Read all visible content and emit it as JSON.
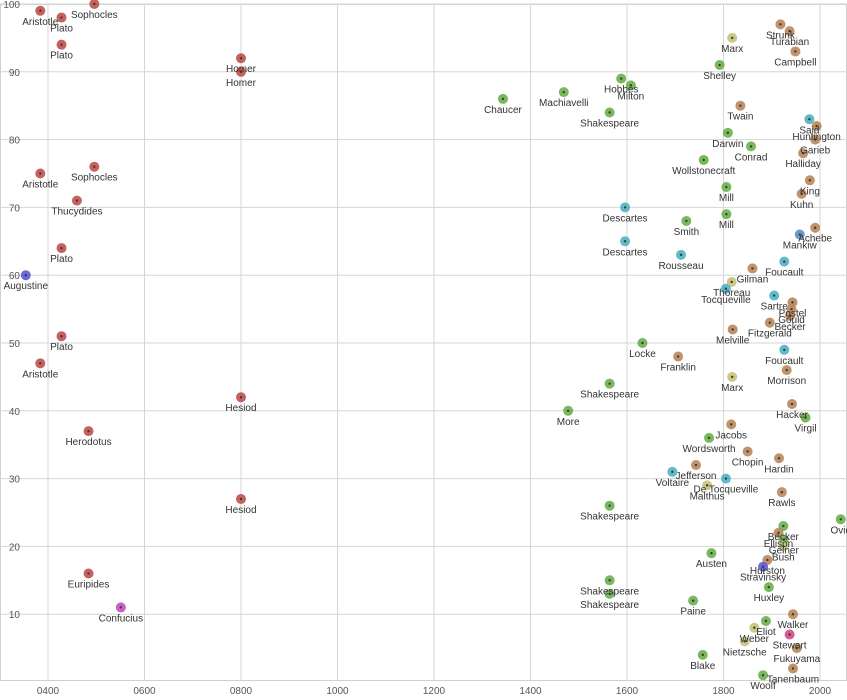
{
  "colors": {
    "ancient": "#c0504d",
    "modern_ochre": "#b9875a",
    "green": "#6ab04c",
    "olive": "#c6c27a",
    "teal": "#4fb3c4",
    "steel": "#5b8fc9",
    "indigo": "#5a5ad6",
    "magenta": "#c050c0",
    "pink": "#d04a8a"
  },
  "chart_data": {
    "type": "scatter",
    "title": "",
    "xlabel": "",
    "ylabel": "",
    "xlim": [
      360,
      2050
    ],
    "ylim": [
      0,
      100
    ],
    "grid": true,
    "legend": "none",
    "x_ticks": [
      {
        "value": 400,
        "label": "0400"
      },
      {
        "value": 600,
        "label": "0600"
      },
      {
        "value": 800,
        "label": "0800"
      },
      {
        "value": 1000,
        "label": "1000"
      },
      {
        "value": 1200,
        "label": "1200"
      },
      {
        "value": 1400,
        "label": "1400"
      },
      {
        "value": 1600,
        "label": "1600"
      },
      {
        "value": 1800,
        "label": "1800"
      },
      {
        "value": 2000,
        "label": "2000"
      }
    ],
    "y_ticks": [
      {
        "value": 10,
        "label": "10"
      },
      {
        "value": 20,
        "label": "20"
      },
      {
        "value": 30,
        "label": "30"
      },
      {
        "value": 40,
        "label": "40"
      },
      {
        "value": 50,
        "label": "50"
      },
      {
        "value": 60,
        "label": "60"
      },
      {
        "value": 70,
        "label": "70"
      },
      {
        "value": 80,
        "label": "80"
      },
      {
        "value": 90,
        "label": "90"
      },
      {
        "value": 100,
        "label": "100"
      }
    ],
    "points": [
      {
        "label": "Sophocles",
        "x": 496,
        "y": 100,
        "group": "ancient"
      },
      {
        "label": "Aristotle",
        "x": 384,
        "y": 99,
        "group": "ancient"
      },
      {
        "label": "Plato",
        "x": 428,
        "y": 98,
        "group": "ancient"
      },
      {
        "label": "Plato",
        "x": 428,
        "y": 94,
        "group": "ancient"
      },
      {
        "label": "Homer",
        "x": 800,
        "y": 92,
        "group": "ancient"
      },
      {
        "label": "Homer",
        "x": 800,
        "y": 90,
        "group": "ancient"
      },
      {
        "label": "Aristotle",
        "x": 384,
        "y": 75,
        "group": "ancient"
      },
      {
        "label": "Sophocles",
        "x": 496,
        "y": 76,
        "group": "ancient"
      },
      {
        "label": "Thucydides",
        "x": 460,
        "y": 71,
        "group": "ancient"
      },
      {
        "label": "Plato",
        "x": 428,
        "y": 64,
        "group": "ancient"
      },
      {
        "label": "Augustine",
        "x": 354,
        "y": 60,
        "group": "indigo"
      },
      {
        "label": "Plato",
        "x": 428,
        "y": 51,
        "group": "ancient"
      },
      {
        "label": "Aristotle",
        "x": 384,
        "y": 47,
        "group": "ancient"
      },
      {
        "label": "Hesiod",
        "x": 800,
        "y": 42,
        "group": "ancient"
      },
      {
        "label": "Herodotus",
        "x": 484,
        "y": 37,
        "group": "ancient"
      },
      {
        "label": "Hesiod",
        "x": 800,
        "y": 27,
        "group": "ancient"
      },
      {
        "label": "Euripides",
        "x": 484,
        "y": 16,
        "group": "ancient"
      },
      {
        "label": "Confucius",
        "x": 551,
        "y": 11,
        "group": "magenta"
      },
      {
        "label": "Chaucer",
        "x": 1343,
        "y": 86,
        "group": "green"
      },
      {
        "label": "Machiavelli",
        "x": 1469,
        "y": 87,
        "group": "green"
      },
      {
        "label": "Hobbes",
        "x": 1588,
        "y": 89,
        "group": "green"
      },
      {
        "label": "Milton",
        "x": 1608,
        "y": 88,
        "group": "green"
      },
      {
        "label": "Shakespeare",
        "x": 1564,
        "y": 84,
        "group": "green"
      },
      {
        "label": "Descartes",
        "x": 1596,
        "y": 70,
        "group": "teal"
      },
      {
        "label": "Descartes",
        "x": 1596,
        "y": 65,
        "group": "teal"
      },
      {
        "label": "Smith",
        "x": 1723,
        "y": 68,
        "group": "green"
      },
      {
        "label": "Rousseau",
        "x": 1712,
        "y": 63,
        "group": "teal"
      },
      {
        "label": "Locke",
        "x": 1632,
        "y": 50,
        "group": "green"
      },
      {
        "label": "Franklin",
        "x": 1706,
        "y": 48,
        "group": "modern_ochre"
      },
      {
        "label": "Shakespeare",
        "x": 1564,
        "y": 44,
        "group": "green"
      },
      {
        "label": "More",
        "x": 1478,
        "y": 40,
        "group": "green"
      },
      {
        "label": "Shakespeare",
        "x": 1564,
        "y": 26,
        "group": "green"
      },
      {
        "label": "Shakespeare",
        "x": 1564,
        "y": 15,
        "group": "green"
      },
      {
        "label": "Shakespeare",
        "x": 1564,
        "y": 13,
        "group": "green"
      },
      {
        "label": "Paine",
        "x": 1737,
        "y": 12,
        "group": "green"
      },
      {
        "label": "Blake",
        "x": 1757,
        "y": 4,
        "group": "green"
      },
      {
        "label": "Strunk",
        "x": 1918,
        "y": 97,
        "group": "modern_ochre"
      },
      {
        "label": "Turabian",
        "x": 1937,
        "y": 96,
        "group": "modern_ochre"
      },
      {
        "label": "Marx",
        "x": 1818,
        "y": 95,
        "group": "olive"
      },
      {
        "label": "Campbell",
        "x": 1949,
        "y": 93,
        "group": "modern_ochre"
      },
      {
        "label": "Shelley",
        "x": 1792,
        "y": 91,
        "group": "green"
      },
      {
        "label": "Twain",
        "x": 1835,
        "y": 85,
        "group": "modern_ochre"
      },
      {
        "label": "Said",
        "x": 1978,
        "y": 83,
        "group": "teal"
      },
      {
        "label": "Huntington",
        "x": 1993,
        "y": 82,
        "group": "modern_ochre"
      },
      {
        "label": "Darwin",
        "x": 1809,
        "y": 81,
        "group": "green"
      },
      {
        "label": "Garieb",
        "x": 1990,
        "y": 80,
        "group": "modern_ochre"
      },
      {
        "label": "Conrad",
        "x": 1857,
        "y": 79,
        "group": "green"
      },
      {
        "label": "Halliday",
        "x": 1965,
        "y": 78,
        "group": "modern_ochre"
      },
      {
        "label": "Wollstonecraft",
        "x": 1759,
        "y": 77,
        "group": "green"
      },
      {
        "label": "King",
        "x": 1979,
        "y": 74,
        "group": "modern_ochre"
      },
      {
        "label": "Mill",
        "x": 1806,
        "y": 73,
        "group": "green"
      },
      {
        "label": "Kuhn",
        "x": 1962,
        "y": 72,
        "group": "modern_ochre"
      },
      {
        "label": "Mill",
        "x": 1806,
        "y": 69,
        "group": "green"
      },
      {
        "label": "Achebe",
        "x": 1990,
        "y": 67,
        "group": "modern_ochre"
      },
      {
        "label": "Mankiw",
        "x": 1958,
        "y": 66,
        "group": "steel"
      },
      {
        "label": "Foucault",
        "x": 1926,
        "y": 62,
        "group": "teal"
      },
      {
        "label": "Gilman",
        "x": 1860,
        "y": 61,
        "group": "modern_ochre"
      },
      {
        "label": "Thoreau",
        "x": 1817,
        "y": 59,
        "group": "olive"
      },
      {
        "label": "Tocqueville",
        "x": 1805,
        "y": 58,
        "group": "teal"
      },
      {
        "label": "Sartre",
        "x": 1905,
        "y": 57,
        "group": "teal"
      },
      {
        "label": "Postel",
        "x": 1943,
        "y": 56,
        "group": "modern_ochre"
      },
      {
        "label": "Gould",
        "x": 1941,
        "y": 55,
        "group": "modern_ochre"
      },
      {
        "label": "Becker",
        "x": 1938,
        "y": 54,
        "group": "modern_ochre"
      },
      {
        "label": "Fitzgerald",
        "x": 1896,
        "y": 53,
        "group": "modern_ochre"
      },
      {
        "label": "Melville",
        "x": 1819,
        "y": 52,
        "group": "modern_ochre"
      },
      {
        "label": "Foucault",
        "x": 1926,
        "y": 49,
        "group": "teal"
      },
      {
        "label": "Morrison",
        "x": 1931,
        "y": 46,
        "group": "modern_ochre"
      },
      {
        "label": "Marx",
        "x": 1818,
        "y": 45,
        "group": "olive"
      },
      {
        "label": "Hacker",
        "x": 1942,
        "y": 41,
        "group": "modern_ochre"
      },
      {
        "label": "Virgil",
        "x": 1970,
        "y": 39,
        "group": "green"
      },
      {
        "label": "Jacobs",
        "x": 1816,
        "y": 38,
        "group": "modern_ochre"
      },
      {
        "label": "Wordsworth",
        "x": 1770,
        "y": 36,
        "group": "green"
      },
      {
        "label": "Chopin",
        "x": 1850,
        "y": 34,
        "group": "modern_ochre"
      },
      {
        "label": "Hardin",
        "x": 1915,
        "y": 33,
        "group": "modern_ochre"
      },
      {
        "label": "Jefferson",
        "x": 1743,
        "y": 32,
        "group": "modern_ochre"
      },
      {
        "label": "Voltaire",
        "x": 1694,
        "y": 31,
        "group": "teal"
      },
      {
        "label": "De Tocqueville",
        "x": 1805,
        "y": 30,
        "group": "teal"
      },
      {
        "label": "Malthus",
        "x": 1766,
        "y": 29,
        "group": "olive"
      },
      {
        "label": "Rawls",
        "x": 1921,
        "y": 28,
        "group": "modern_ochre"
      },
      {
        "label": "Ovid",
        "x": 2043,
        "y": 24,
        "group": "green"
      },
      {
        "label": "Becker",
        "x": 1924,
        "y": 23,
        "group": "green"
      },
      {
        "label": "Ellison",
        "x": 1914,
        "y": 22,
        "group": "modern_ochre"
      },
      {
        "label": "Gelner",
        "x": 1925,
        "y": 21,
        "group": "green"
      },
      {
        "label": "Bush",
        "x": 1924,
        "y": 20,
        "group": "olive"
      },
      {
        "label": "Austen",
        "x": 1775,
        "y": 19,
        "group": "green"
      },
      {
        "label": "Hurston",
        "x": 1891,
        "y": 18,
        "group": "modern_ochre"
      },
      {
        "label": "Stravinsky",
        "x": 1882,
        "y": 17,
        "group": "indigo"
      },
      {
        "label": "Huxley",
        "x": 1894,
        "y": 14,
        "group": "green"
      },
      {
        "label": "Walker",
        "x": 1944,
        "y": 10,
        "group": "modern_ochre"
      },
      {
        "label": "Eliot",
        "x": 1888,
        "y": 9,
        "group": "green"
      },
      {
        "label": "Weber",
        "x": 1864,
        "y": 8,
        "group": "olive"
      },
      {
        "label": "Stewart",
        "x": 1937,
        "y": 7,
        "group": "pink"
      },
      {
        "label": "Nietzsche",
        "x": 1844,
        "y": 6,
        "group": "olive"
      },
      {
        "label": "Fukuyama",
        "x": 1952,
        "y": 5,
        "group": "modern_ochre"
      },
      {
        "label": "Tanenbaum",
        "x": 1944,
        "y": 2,
        "group": "modern_ochre"
      },
      {
        "label": "Woolf",
        "x": 1882,
        "y": 1,
        "group": "green"
      }
    ]
  }
}
